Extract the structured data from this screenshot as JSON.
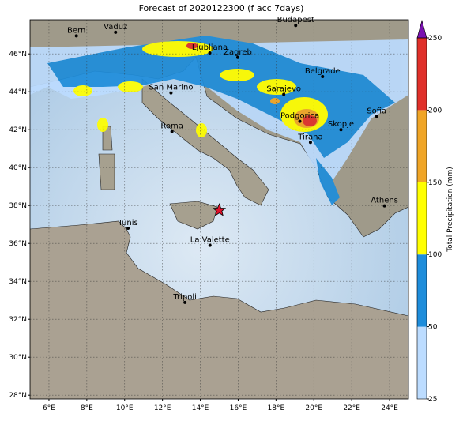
{
  "title": "Forecast of 2020122300 (f acc 7days)",
  "map": {
    "xlim": [
      5,
      25
    ],
    "ylim": [
      27.8,
      47.8
    ],
    "xticks": [
      {
        "value": 6,
        "label": "6°E"
      },
      {
        "value": 8,
        "label": "8°E"
      },
      {
        "value": 10,
        "label": "10°E"
      },
      {
        "value": 12,
        "label": "12°E"
      },
      {
        "value": 14,
        "label": "14°E"
      },
      {
        "value": 16,
        "label": "16°E"
      },
      {
        "value": 18,
        "label": "18°E"
      },
      {
        "value": 20,
        "label": "20°E"
      },
      {
        "value": 22,
        "label": "22°E"
      },
      {
        "value": 24,
        "label": "24°E"
      }
    ],
    "yticks": [
      {
        "value": 28,
        "label": "28°N"
      },
      {
        "value": 30,
        "label": "30°N"
      },
      {
        "value": 32,
        "label": "32°N"
      },
      {
        "value": 34,
        "label": "34°N"
      },
      {
        "value": 36,
        "label": "36°N"
      },
      {
        "value": 38,
        "label": "38°N"
      },
      {
        "value": 40,
        "label": "40°N"
      },
      {
        "value": 42,
        "label": "42°N"
      },
      {
        "value": 44,
        "label": "44°N"
      },
      {
        "value": 46,
        "label": "46°N"
      }
    ],
    "grid": true,
    "cities": [
      {
        "name": "Bern",
        "lon": 7.45,
        "lat": 46.95
      },
      {
        "name": "Vaduz",
        "lon": 9.52,
        "lat": 47.14
      },
      {
        "name": "Budapest",
        "lon": 19.04,
        "lat": 47.5
      },
      {
        "name": "Ljubljana",
        "lon": 14.5,
        "lat": 46.05
      },
      {
        "name": "Zagreb",
        "lon": 15.98,
        "lat": 45.81
      },
      {
        "name": "Belgrade",
        "lon": 20.46,
        "lat": 44.8
      },
      {
        "name": "Sarajevo",
        "lon": 18.41,
        "lat": 43.86
      },
      {
        "name": "San Marino",
        "lon": 12.45,
        "lat": 43.94
      },
      {
        "name": "Roma",
        "lon": 12.5,
        "lat": 41.9
      },
      {
        "name": "Podgorica",
        "lon": 19.26,
        "lat": 42.44
      },
      {
        "name": "Skopje",
        "lon": 21.43,
        "lat": 42.0
      },
      {
        "name": "Sofia",
        "lon": 23.32,
        "lat": 42.7
      },
      {
        "name": "Tirana",
        "lon": 19.82,
        "lat": 41.33
      },
      {
        "name": "Athens",
        "lon": 23.73,
        "lat": 37.98
      },
      {
        "name": "Tunis",
        "lon": 10.18,
        "lat": 36.8
      },
      {
        "name": "La Valette",
        "lon": 14.51,
        "lat": 35.9
      },
      {
        "name": "Tripoli",
        "lon": 13.19,
        "lat": 32.89
      }
    ],
    "marker": {
      "lon": 15.0,
      "lat": 37.75,
      "color": "#e0102a"
    }
  },
  "colorbar": {
    "label": "Total Precipitation (mm)",
    "bounds": [
      25,
      50,
      100,
      150,
      200,
      250
    ],
    "colors": [
      "#bcdcff",
      "#1e8ddb",
      "#ffff00",
      "#f0a526",
      "#e0302a"
    ],
    "extend_color": "#7a12b0"
  }
}
